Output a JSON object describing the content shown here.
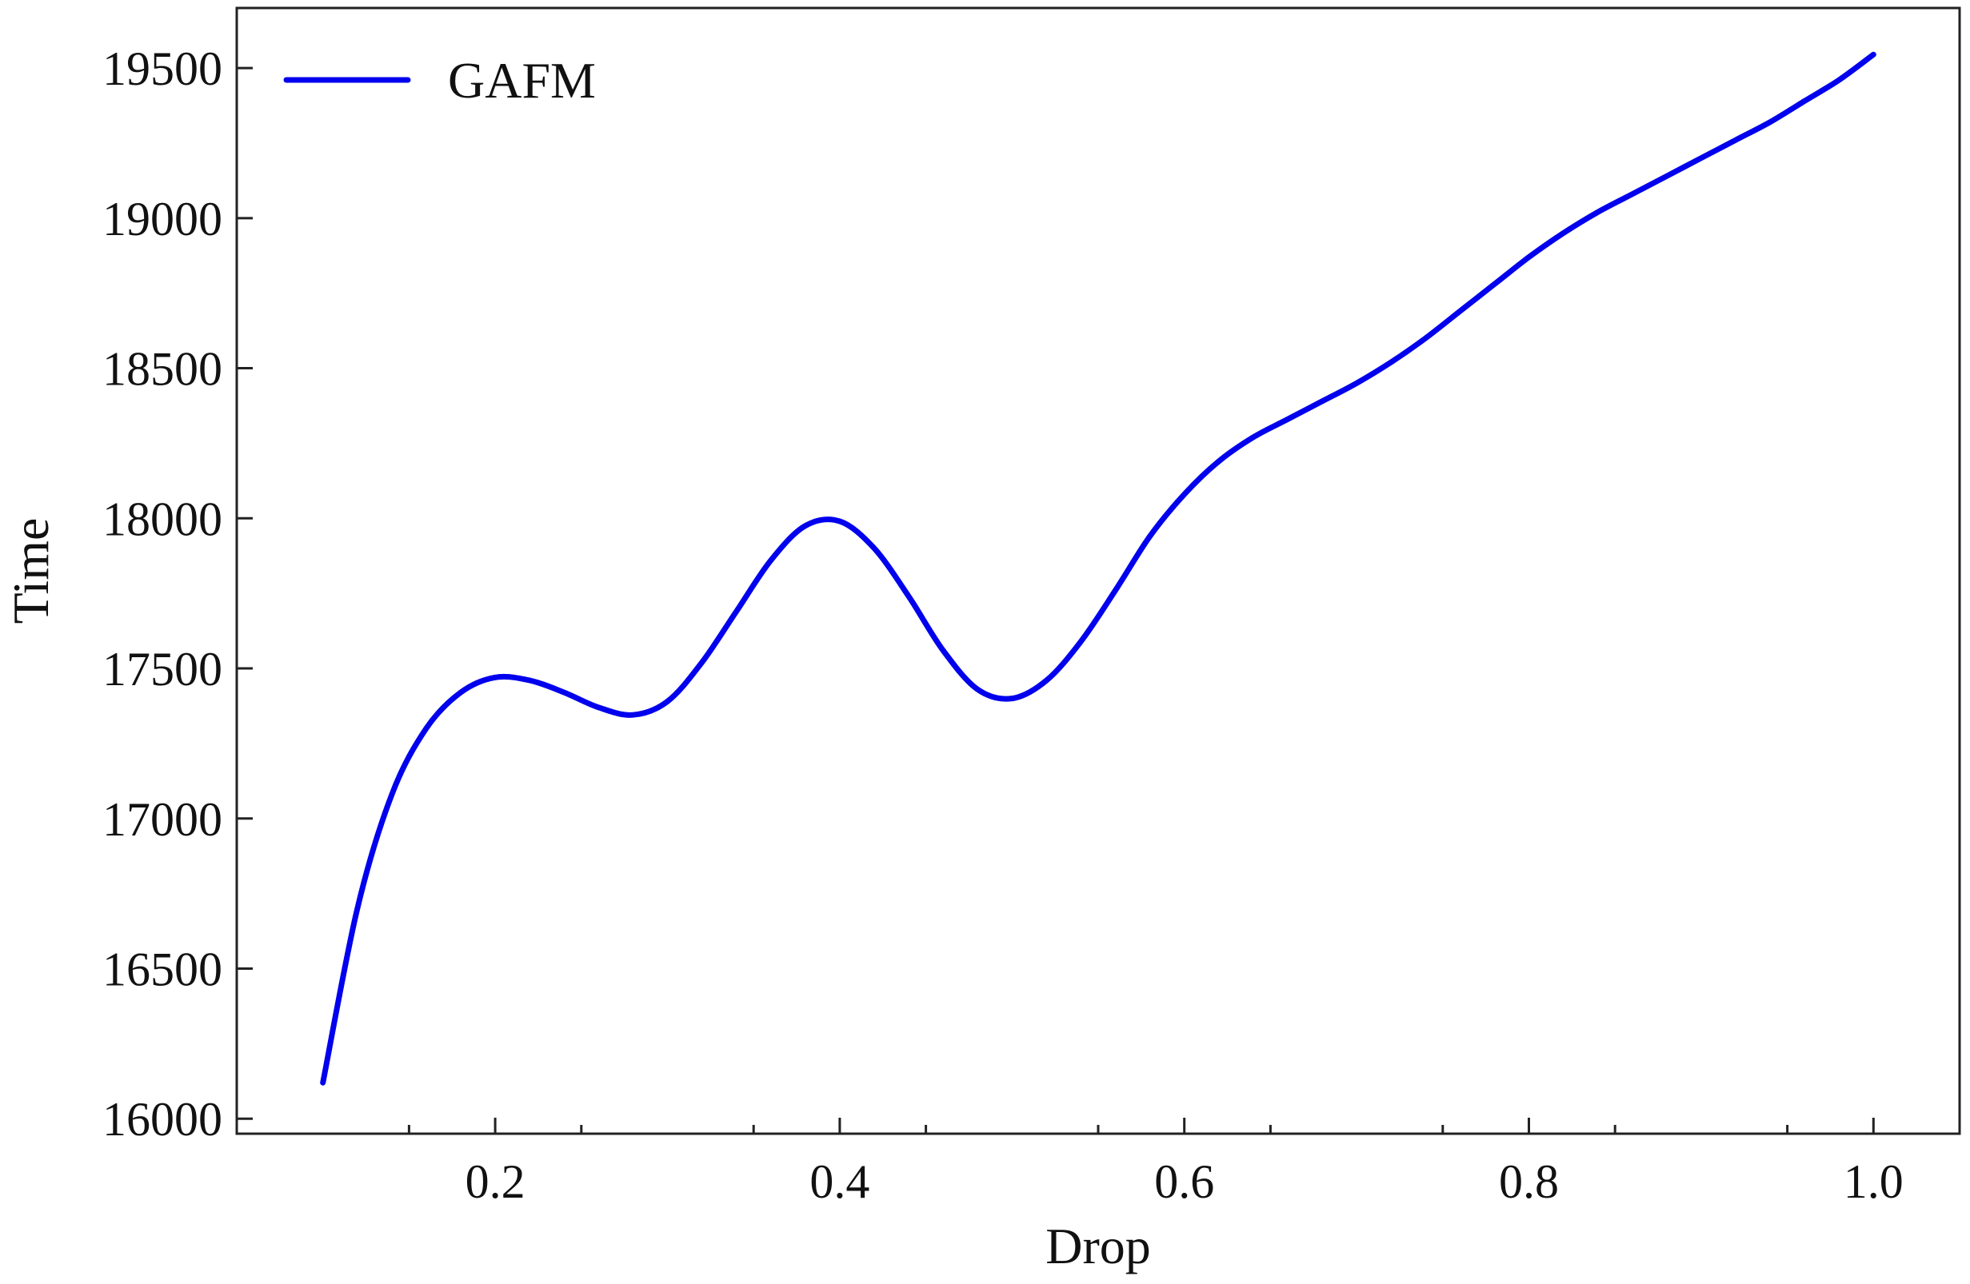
{
  "chart_data": {
    "type": "line",
    "title": "",
    "xlabel": "Drop",
    "ylabel": "Time",
    "xlim": [
      0.05,
      1.05
    ],
    "ylim": [
      15950,
      19700
    ],
    "xticks": [
      0.2,
      0.4,
      0.6,
      0.8,
      1.0
    ],
    "xtick_labels": [
      "0.2",
      "0.4",
      "0.6",
      "0.8",
      "1.0"
    ],
    "xminor": [
      0.15,
      0.25,
      0.35,
      0.45,
      0.55,
      0.65,
      0.75,
      0.85,
      0.95
    ],
    "yticks": [
      16000,
      16500,
      17000,
      17500,
      18000,
      18500,
      19000,
      19500
    ],
    "ytick_labels": [
      "16000",
      "16500",
      "17000",
      "17500",
      "18000",
      "18500",
      "19000",
      "19500"
    ],
    "ticks_direction": "in",
    "grid": false,
    "legend": {
      "position": "top-left"
    },
    "series": [
      {
        "name": "GAFM",
        "color": "#0000ee",
        "x": [
          0.1,
          0.12,
          0.14,
          0.16,
          0.18,
          0.2,
          0.22,
          0.24,
          0.26,
          0.28,
          0.3,
          0.32,
          0.34,
          0.36,
          0.38,
          0.4,
          0.42,
          0.44,
          0.46,
          0.48,
          0.5,
          0.52,
          0.54,
          0.56,
          0.58,
          0.6,
          0.62,
          0.64,
          0.66,
          0.68,
          0.7,
          0.72,
          0.74,
          0.76,
          0.78,
          0.8,
          0.82,
          0.84,
          0.86,
          0.88,
          0.9,
          0.92,
          0.94,
          0.96,
          0.98,
          1.0
        ],
        "y": [
          16120,
          16700,
          17080,
          17300,
          17420,
          17470,
          17460,
          17420,
          17370,
          17345,
          17390,
          17520,
          17690,
          17860,
          17975,
          17990,
          17900,
          17740,
          17560,
          17430,
          17400,
          17460,
          17590,
          17760,
          17940,
          18080,
          18190,
          18270,
          18330,
          18390,
          18450,
          18520,
          18600,
          18690,
          18780,
          18870,
          18950,
          19020,
          19080,
          19140,
          19200,
          19260,
          19320,
          19390,
          19460,
          19545
        ]
      }
    ]
  }
}
